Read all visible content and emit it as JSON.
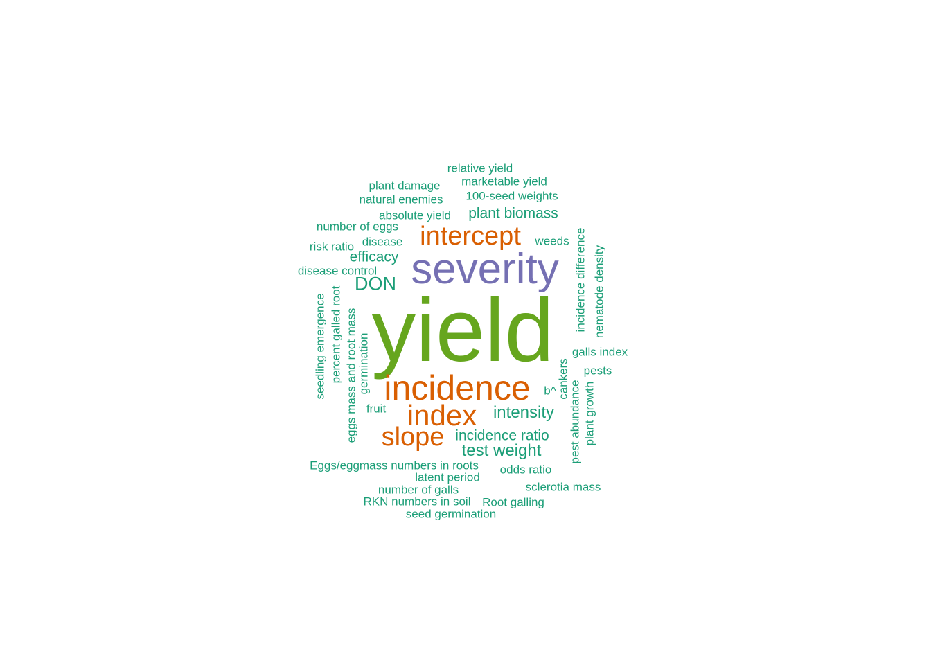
{
  "colors": {
    "teal": "#1b9e77",
    "orange": "#d95f02",
    "purple": "#7570b3",
    "green": "#66a61e"
  },
  "words": {
    "yield": "yield",
    "severity": "severity",
    "incidence": "incidence",
    "index": "index",
    "intercept": "intercept",
    "slope": "slope",
    "intensity": "intensity",
    "test_weight": "test weight",
    "incidence_ratio": "incidence ratio",
    "DON": "DON",
    "efficacy": "efficacy",
    "plant_biomass": "plant biomass",
    "relative_yield": "relative yield",
    "marketable_yield": "marketable yield",
    "plant_damage": "plant damage",
    "hundred_seed_weights": "100-seed weights",
    "natural_enemies": "natural enemies",
    "absolute_yield": "absolute yield",
    "number_of_eggs": "number of eggs",
    "risk_ratio": "risk ratio",
    "disease": "disease",
    "weeds": "weeds",
    "disease_control": "disease control",
    "seedling_emergence": "seedling emergence",
    "percent_galled_root": "percent galled root",
    "eggs_mass_and_root_mass": "eggs mass and root mass",
    "germination": "germination",
    "fruit": "fruit",
    "incidence_difference": "incidence difference",
    "nematode_density": "nematode density",
    "galls_index": "galls index",
    "pests": "pests",
    "cankers": "cankers",
    "b_hat": "b^",
    "pest_abundance": "pest abundance",
    "plant_growth": "plant growth",
    "eggs_eggmass_numbers": "Eggs/eggmass numbers in roots",
    "odds_ratio": "odds ratio",
    "latent_period": "latent period",
    "sclerotia_mass": "sclerotia mass",
    "number_of_galls": "number of galls",
    "rkn_numbers_in_soil": "RKN numbers in soil",
    "root_galling": "Root galling",
    "seed_germination": "seed germination"
  }
}
